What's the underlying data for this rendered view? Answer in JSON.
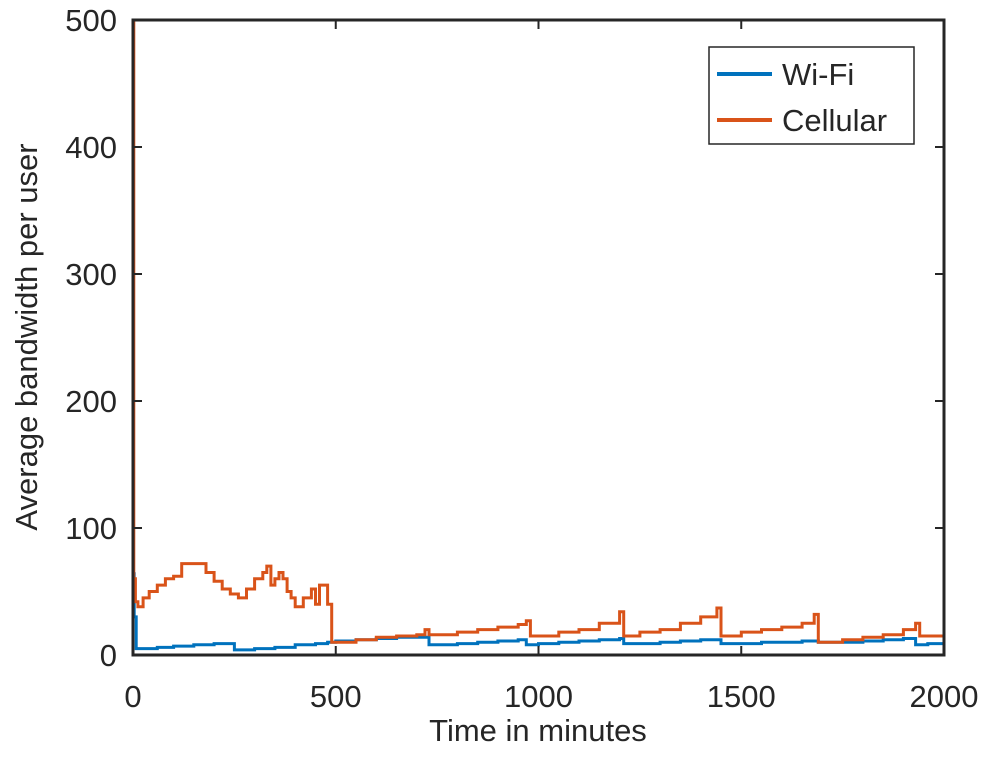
{
  "chart_data": {
    "type": "line",
    "title": "",
    "xlabel": "Time in minutes",
    "ylabel": "Average bandwidth per user",
    "xlim": [
      0,
      2000
    ],
    "ylim": [
      0,
      500
    ],
    "xticks": [
      0,
      500,
      1000,
      1500,
      2000
    ],
    "yticks": [
      0,
      100,
      200,
      300,
      400,
      500
    ],
    "grid": false,
    "legend_position": "top-right",
    "series": [
      {
        "name": "Wi-Fi",
        "color": "#0072BD",
        "step": true,
        "x": [
          0,
          3,
          8,
          20,
          60,
          100,
          150,
          200,
          240,
          250,
          300,
          350,
          400,
          450,
          480,
          500,
          550,
          600,
          650,
          700,
          720,
          730,
          800,
          850,
          900,
          950,
          960,
          970,
          1000,
          1050,
          1100,
          1150,
          1200,
          1210,
          1250,
          1300,
          1350,
          1400,
          1440,
          1450,
          1500,
          1550,
          1600,
          1650,
          1680,
          1690,
          1750,
          1800,
          1850,
          1900,
          1920,
          1930,
          1960,
          2000
        ],
        "y": [
          64,
          30,
          5,
          5,
          6,
          7,
          8,
          9,
          9,
          4,
          5,
          6,
          8,
          9,
          10,
          11,
          12,
          13,
          14,
          14,
          14,
          8,
          9,
          10,
          11,
          12,
          12,
          8,
          9,
          10,
          11,
          12,
          13,
          9,
          9,
          10,
          11,
          12,
          12,
          9,
          9,
          10,
          10,
          11,
          11,
          10,
          10,
          11,
          12,
          13,
          13,
          8,
          9,
          10
        ]
      },
      {
        "name": "Cellular",
        "color": "#D95319",
        "step": true,
        "x": [
          0,
          2,
          6,
          12,
          25,
          40,
          60,
          80,
          100,
          120,
          150,
          180,
          200,
          220,
          240,
          260,
          280,
          300,
          320,
          330,
          340,
          350,
          360,
          370,
          380,
          390,
          400,
          420,
          440,
          450,
          460,
          480,
          490,
          550,
          600,
          650,
          700,
          720,
          730,
          800,
          850,
          900,
          950,
          970,
          980,
          1050,
          1100,
          1150,
          1200,
          1210,
          1250,
          1300,
          1350,
          1400,
          1440,
          1450,
          1500,
          1550,
          1600,
          1650,
          1680,
          1690,
          1750,
          1800,
          1850,
          1900,
          1930,
          1940,
          2000
        ],
        "y": [
          500,
          60,
          42,
          38,
          45,
          50,
          55,
          60,
          62,
          72,
          72,
          65,
          58,
          52,
          48,
          45,
          52,
          60,
          65,
          70,
          55,
          60,
          65,
          60,
          50,
          45,
          38,
          45,
          52,
          40,
          55,
          40,
          10,
          12,
          14,
          15,
          16,
          20,
          16,
          18,
          20,
          22,
          24,
          27,
          15,
          18,
          20,
          25,
          34,
          15,
          18,
          20,
          25,
          30,
          37,
          15,
          18,
          20,
          22,
          25,
          32,
          10,
          12,
          14,
          16,
          20,
          25,
          15,
          17
        ]
      }
    ]
  }
}
